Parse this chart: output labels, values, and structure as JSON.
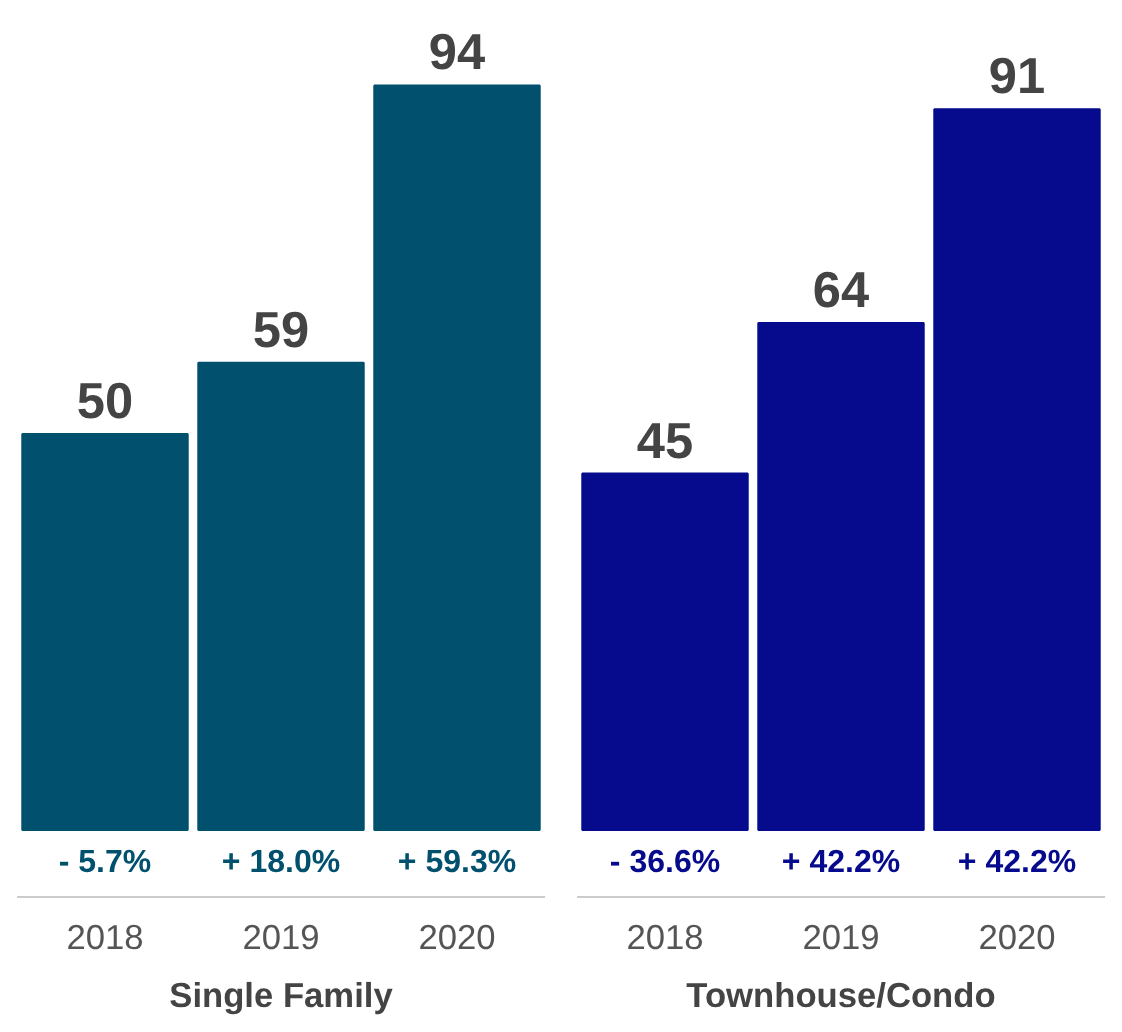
{
  "chart_data": [
    {
      "type": "bar",
      "xlabel": "Single Family",
      "categories": [
        "2018",
        "2019",
        "2020"
      ],
      "values": [
        50,
        59,
        94
      ],
      "color": "#00506e",
      "data_labels": true,
      "grid": false,
      "annotations": [
        {
          "text": "- 5.7%",
          "x": "2018",
          "y": 0
        },
        {
          "text": "+ 18.0%",
          "x": "2019",
          "y": 0
        },
        {
          "text": "+ 59.3%",
          "x": "2020",
          "y": 0
        }
      ]
    },
    {
      "type": "bar",
      "xlabel": "Townhouse/Condo",
      "categories": [
        "2018",
        "2019",
        "2020"
      ],
      "values": [
        45,
        64,
        91
      ],
      "color": "#060a8c",
      "data_labels": true,
      "grid": false,
      "annotations": [
        {
          "text": "- 36.6%",
          "x": "2018",
          "y": 0
        },
        {
          "text": "+ 42.2%",
          "x": "2019",
          "y": 0
        },
        {
          "text": "+ 42.2%",
          "x": "2020",
          "y": 0
        }
      ]
    }
  ]
}
